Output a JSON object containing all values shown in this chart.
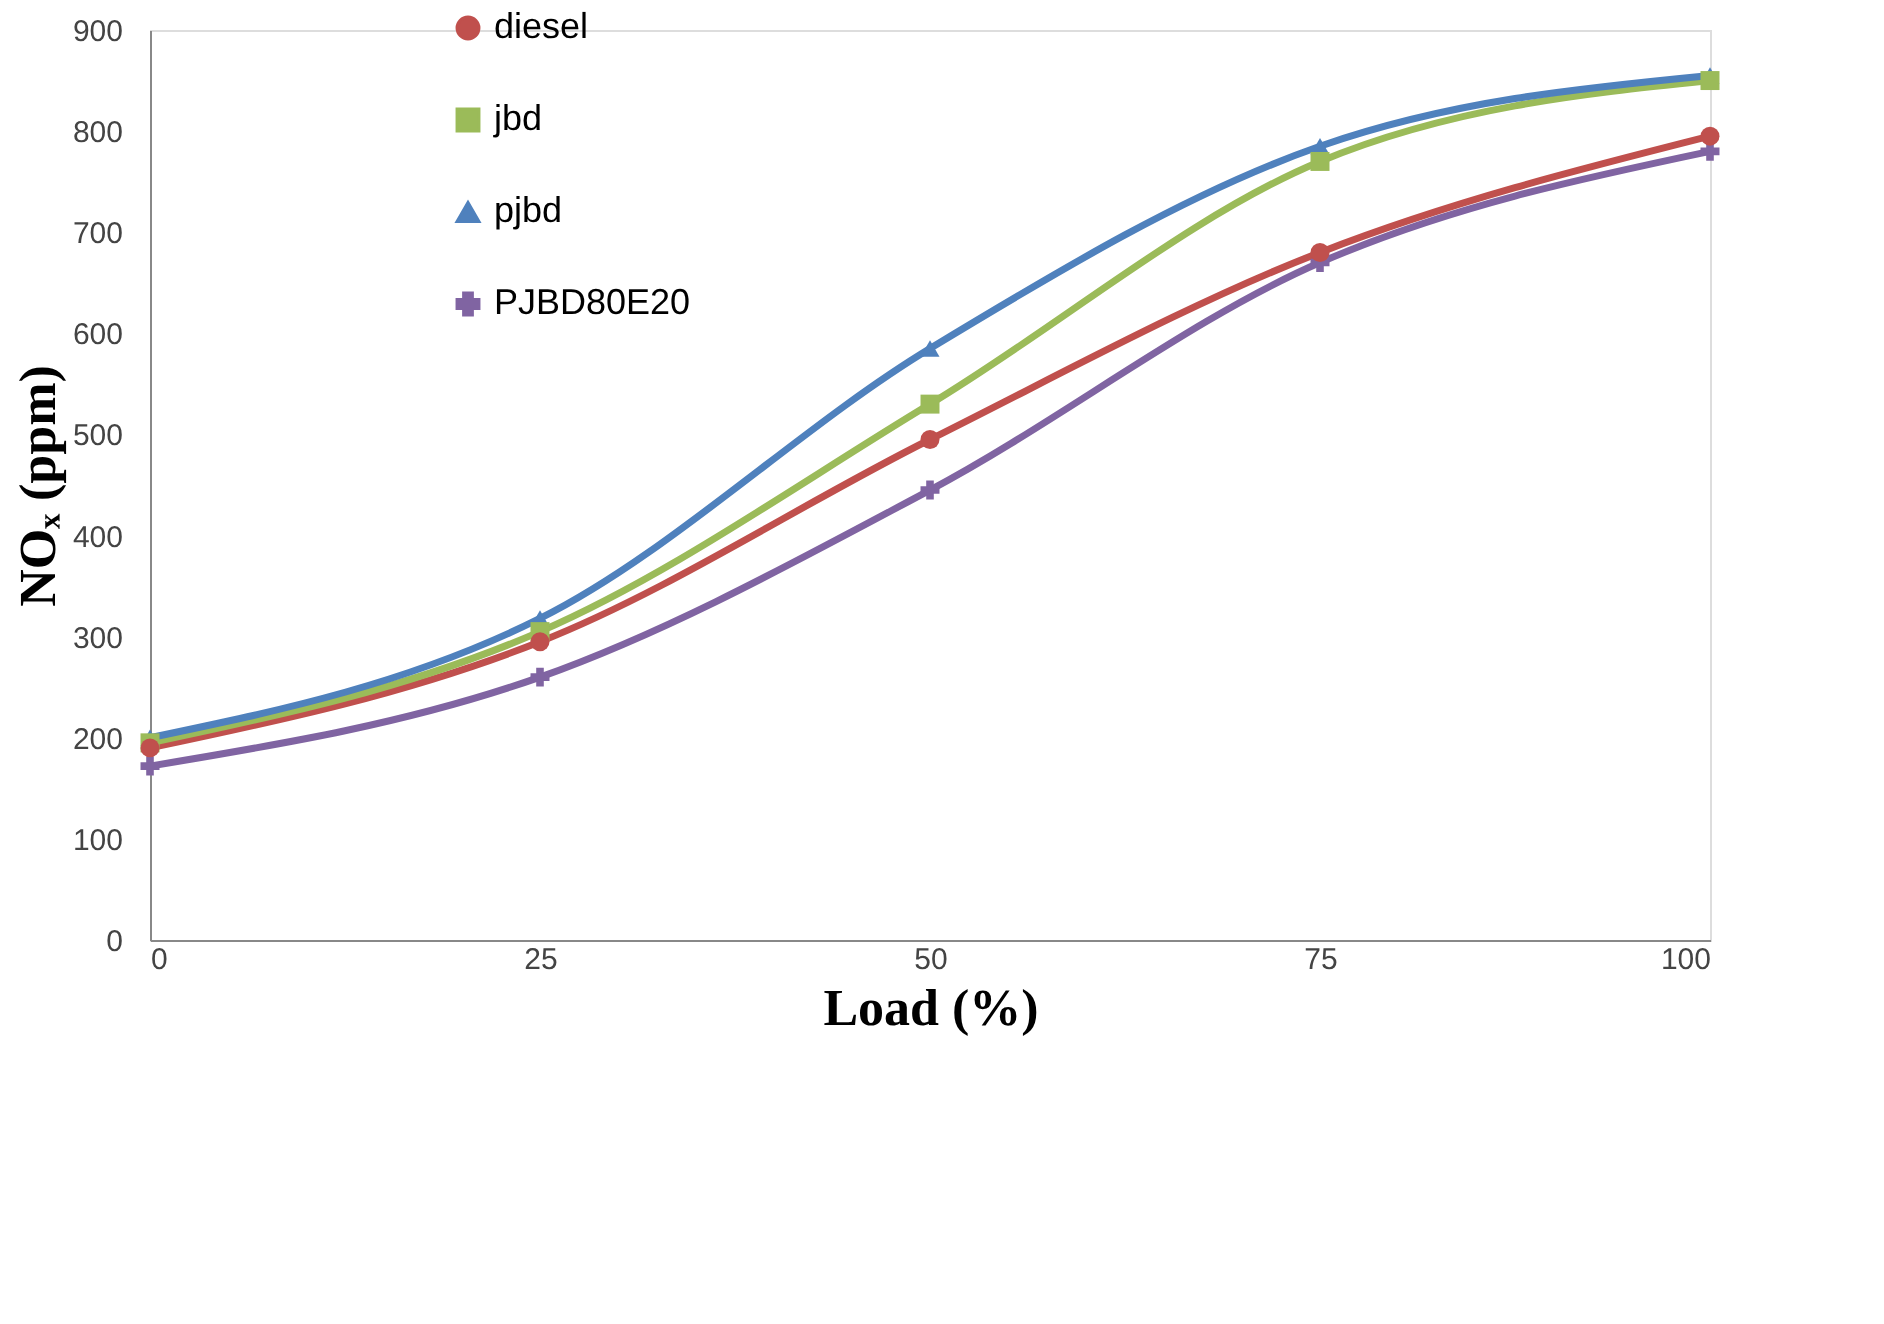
{
  "chart_data": {
    "type": "line",
    "xlabel": "Load (%)",
    "ylabel": "NOₓ (ppm)",
    "x": [
      0,
      25,
      50,
      75,
      100
    ],
    "series": [
      {
        "name": "diesel",
        "color": "#c0504d",
        "marker": "circle",
        "values": [
          190,
          295,
          495,
          680,
          795
        ]
      },
      {
        "name": "jbd",
        "color": "#9bbb59",
        "marker": "square",
        "values": [
          195,
          305,
          530,
          770,
          850
        ]
      },
      {
        "name": "pjbd",
        "color": "#4f81bd",
        "marker": "triangle",
        "values": [
          200,
          318,
          585,
          785,
          855
        ]
      },
      {
        "name": "PJBD80E20",
        "color": "#8064a2",
        "marker": "cross",
        "values": [
          172,
          260,
          445,
          670,
          780
        ]
      }
    ],
    "xlim": [
      0,
      100
    ],
    "xticks": [
      0,
      25,
      50,
      75,
      100
    ],
    "ylim": [
      0,
      900
    ],
    "yticks": [
      0,
      100,
      200,
      300,
      400,
      500,
      600,
      700,
      800,
      900
    ],
    "grid": false,
    "legend": "top left",
    "line_style": "solid"
  }
}
